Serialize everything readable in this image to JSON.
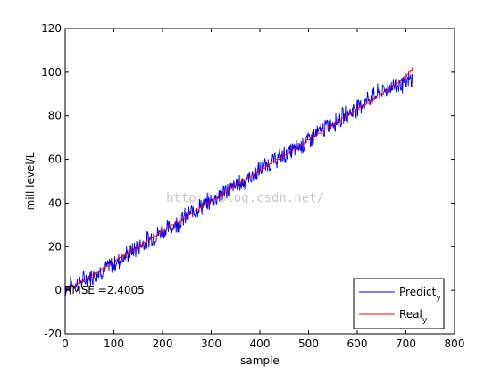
{
  "chart_data": {
    "type": "line",
    "xlabel": "sample",
    "ylabel": "mill level/L",
    "xlim": [
      0,
      800
    ],
    "ylim": [
      -20,
      120
    ],
    "xticks": [
      0,
      100,
      200,
      300,
      400,
      500,
      600,
      700,
      800
    ],
    "yticks": [
      -20,
      0,
      20,
      40,
      60,
      80,
      100,
      120
    ],
    "grid": false,
    "legend_position": "bottom-right",
    "annotation": "RMSE =2.4005",
    "watermark": "http://blog.csdn.net/",
    "colors": {
      "predict": "#0000ff",
      "real": "#ff0000",
      "axes": "#000000"
    },
    "series": [
      {
        "name": "Predict",
        "name_subscript": "y",
        "color": "#0000ff",
        "x": [
          0,
          25,
          50,
          75,
          100,
          125,
          150,
          175,
          200,
          225,
          250,
          275,
          300,
          325,
          350,
          375,
          400,
          425,
          450,
          475,
          500,
          525,
          550,
          575,
          600,
          625,
          650,
          675,
          700,
          715
        ],
        "y": [
          1,
          3,
          6,
          9,
          12,
          16,
          20,
          24,
          27,
          30,
          34,
          38,
          41,
          45,
          48,
          51,
          55,
          59,
          62,
          65,
          69,
          73,
          77,
          80,
          84,
          88,
          91,
          94,
          95,
          97
        ]
      },
      {
        "name": "Real",
        "name_subscript": "y",
        "color": "#ff0000",
        "x": [
          0,
          50,
          100,
          150,
          200,
          250,
          300,
          350,
          400,
          450,
          500,
          550,
          600,
          650,
          700,
          710,
          715
        ],
        "y": [
          0,
          6,
          13,
          20,
          27,
          34,
          41,
          48,
          55,
          62,
          69,
          76,
          83,
          90,
          98,
          101,
          102
        ]
      }
    ]
  }
}
